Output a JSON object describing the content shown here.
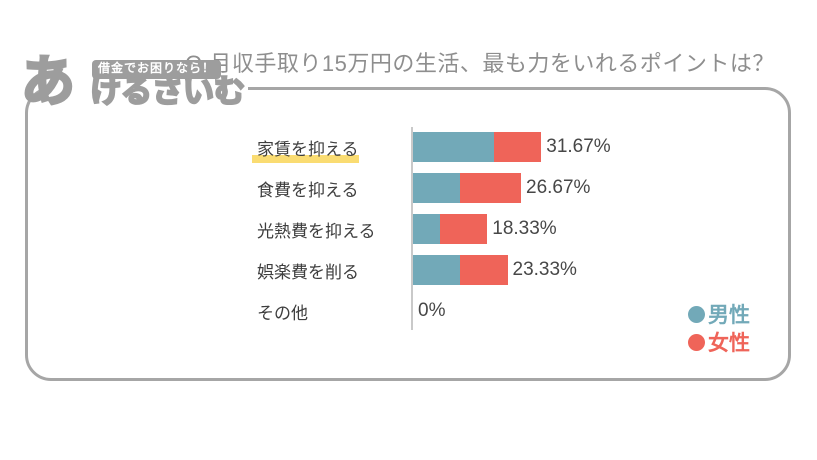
{
  "logo": {
    "big_char": "あ",
    "badge_text": "借金でお困りなら！",
    "name_text": "けるさいむ",
    "color": "#9D9D9D"
  },
  "frame": {
    "border_color": "#A6A6A6"
  },
  "chart_data": {
    "type": "bar",
    "orientation": "horizontal",
    "stacked": true,
    "title": "Q.月収手取り15万円の生活、最も力をいれるポイントは？",
    "categories": [
      "家賃を抑える",
      "食費を抑える",
      "光熱費を抑える",
      "娯楽費を削る",
      "その他"
    ],
    "series": [
      {
        "name": "男性",
        "color": "#72A9B8",
        "values": [
          20.0,
          11.67,
          6.67,
          11.67,
          0
        ]
      },
      {
        "name": "女性",
        "color": "#EF6459",
        "values": [
          11.67,
          15.0,
          11.67,
          11.67,
          0
        ]
      }
    ],
    "totals": [
      31.67,
      26.67,
      18.33,
      23.33,
      0
    ],
    "total_labels": [
      "31.67%",
      "26.67%",
      "18.33%",
      "23.33%",
      "0%"
    ],
    "legend": [
      {
        "label": "男性",
        "color": "#72A9B8"
      },
      {
        "label": "女性",
        "color": "#EF6459"
      }
    ],
    "legend_position": "bottom-right",
    "grid": false,
    "highlight": {
      "category_index": 0,
      "color": "#FADC72"
    },
    "axis": {
      "color": "#C9C9C9"
    }
  }
}
